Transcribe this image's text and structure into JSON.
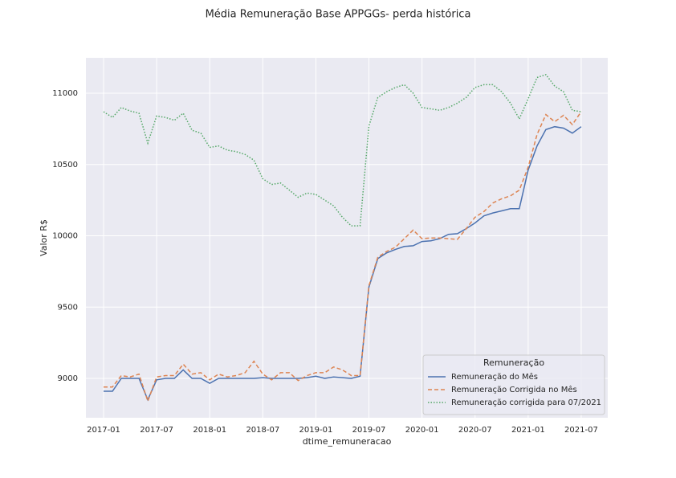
{
  "chart_data": {
    "type": "line",
    "title": "Média Remuneração Base APPGGs- perda histórica",
    "xlabel": "dtime_remuneracao",
    "ylabel": "Valor R$",
    "legend_title": "Remuneração",
    "legend": "lower right",
    "grid": true,
    "x": [
      "2017-01",
      "2017-02",
      "2017-03",
      "2017-04",
      "2017-05",
      "2017-06",
      "2017-07",
      "2017-08",
      "2017-09",
      "2017-10",
      "2017-11",
      "2017-12",
      "2018-01",
      "2018-02",
      "2018-03",
      "2018-04",
      "2018-05",
      "2018-06",
      "2018-07",
      "2018-08",
      "2018-09",
      "2018-10",
      "2018-11",
      "2018-12",
      "2019-01",
      "2019-02",
      "2019-03",
      "2019-04",
      "2019-05",
      "2019-06",
      "2019-07",
      "2019-08",
      "2019-09",
      "2019-10",
      "2019-11",
      "2019-12",
      "2020-01",
      "2020-02",
      "2020-03",
      "2020-04",
      "2020-05",
      "2020-06",
      "2020-07",
      "2020-08",
      "2020-09",
      "2020-10",
      "2020-11",
      "2020-12",
      "2021-01",
      "2021-02",
      "2021-03",
      "2021-04",
      "2021-05",
      "2021-06",
      "2021-07"
    ],
    "xlim": [
      "2016-11",
      "2021-10"
    ],
    "xticks": [
      "2017-01",
      "2017-07",
      "2018-01",
      "2018-07",
      "2019-01",
      "2019-07",
      "2020-01",
      "2020-07",
      "2021-01",
      "2021-07"
    ],
    "ylim": [
      8724,
      11248
    ],
    "yticks": [
      9000,
      9500,
      10000,
      10500,
      11000
    ],
    "series": [
      {
        "name": "Remuneração do Mês",
        "color": "#4c72b0",
        "dash": "solid",
        "values": [
          8910,
          8910,
          9000,
          9000,
          9000,
          8850,
          8990,
          9000,
          9000,
          9060,
          9000,
          9000,
          8965,
          9000,
          9000,
          9000,
          9000,
          9000,
          9005,
          9000,
          9000,
          9000,
          9000,
          9005,
          9015,
          9000,
          9010,
          9005,
          9000,
          9015,
          9640,
          9840,
          9880,
          9905,
          9925,
          9930,
          9960,
          9965,
          9980,
          10010,
          10015,
          10050,
          10090,
          10140,
          10160,
          10175,
          10190,
          10190,
          10460,
          10630,
          10745,
          10765,
          10755,
          10720,
          10765
        ]
      },
      {
        "name": "Remuneração Corrigida no Mês",
        "color": "#dd8452",
        "dash": "dashed",
        "values": [
          8940,
          8940,
          9020,
          9010,
          9030,
          8840,
          9010,
          9020,
          9020,
          9100,
          9030,
          9040,
          8990,
          9030,
          9010,
          9020,
          9040,
          9120,
          9030,
          8990,
          9040,
          9040,
          8985,
          9020,
          9040,
          9040,
          9080,
          9060,
          9020,
          9020,
          9650,
          9850,
          9890,
          9920,
          9980,
          10040,
          9980,
          9985,
          9985,
          9980,
          9975,
          10050,
          10130,
          10170,
          10230,
          10260,
          10280,
          10320,
          10480,
          10710,
          10850,
          10800,
          10845,
          10780,
          10870
        ]
      },
      {
        "name": "Remuneração corrigida para 07/2021",
        "color": "#55a868",
        "dash": "dotted",
        "values": [
          10870,
          10830,
          10900,
          10875,
          10860,
          10650,
          10840,
          10830,
          10810,
          10860,
          10740,
          10720,
          10620,
          10630,
          10600,
          10590,
          10570,
          10530,
          10400,
          10360,
          10370,
          10320,
          10270,
          10300,
          10290,
          10250,
          10210,
          10130,
          10070,
          10070,
          10770,
          10970,
          11010,
          11040,
          11060,
          11000,
          10900,
          10890,
          10880,
          10900,
          10930,
          10970,
          11040,
          11060,
          11060,
          11010,
          10930,
          10820,
          10960,
          11110,
          11130,
          11050,
          11010,
          10880,
          10870
        ]
      }
    ]
  }
}
